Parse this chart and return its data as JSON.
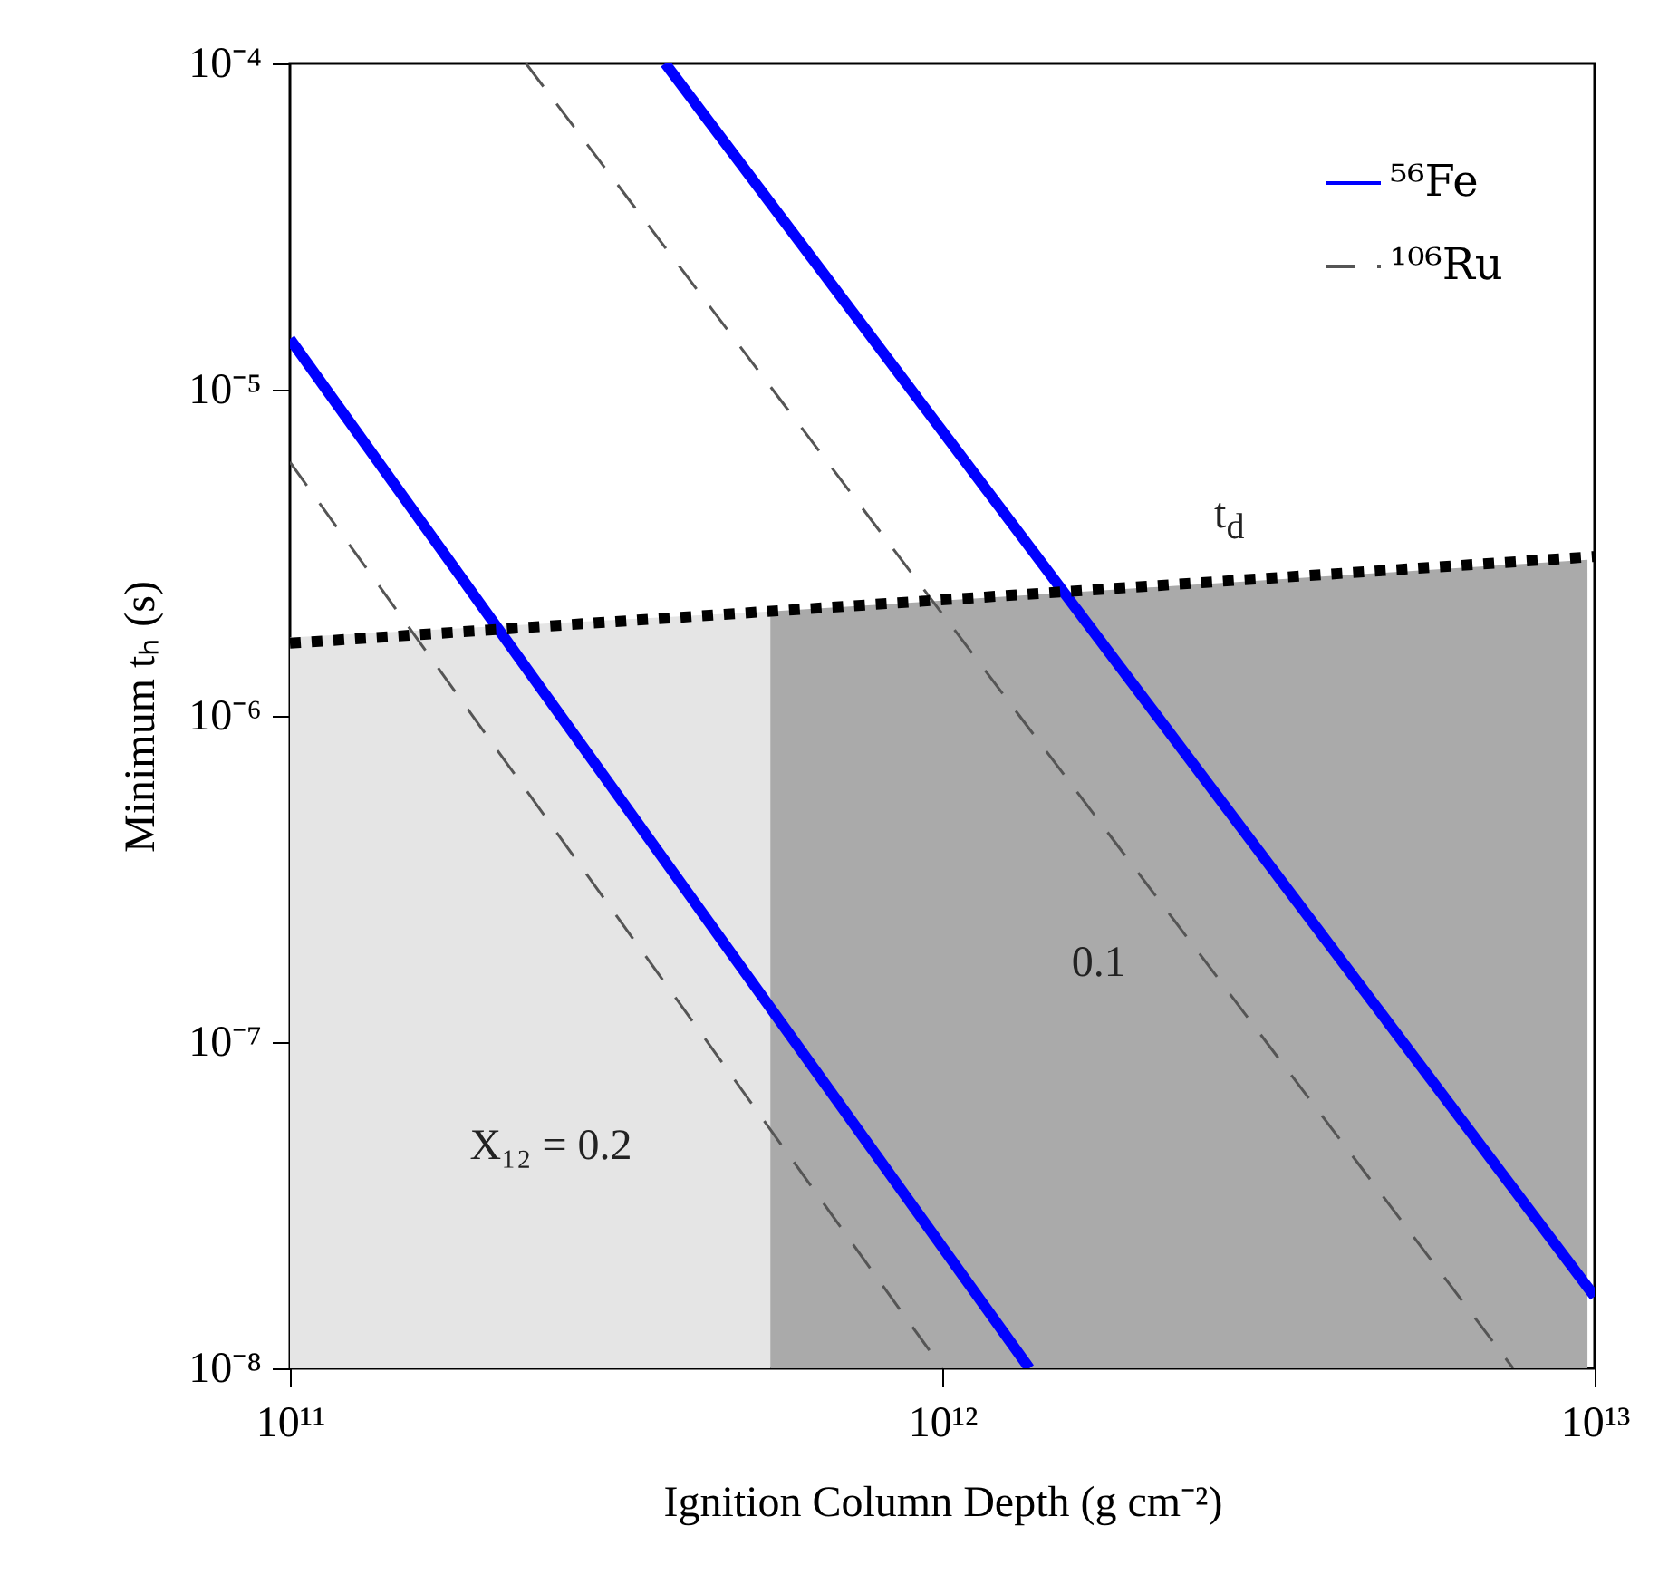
{
  "chart_data": {
    "type": "line",
    "xlabel": "Ignition Column Depth (g cm⁻²)",
    "ylabel": "Minimum tₕ (s)",
    "log": "xy",
    "xlim": [
      100000000000.0,
      10000000000000.0
    ],
    "ylim": [
      1e-08,
      0.0001
    ],
    "xticks": [
      {
        "value": 100000000000.0,
        "label": "10¹¹"
      },
      {
        "value": 1000000000000.0,
        "label": "10¹²"
      },
      {
        "value": 10000000000000.0,
        "label": "10¹³"
      }
    ],
    "yticks": [
      {
        "value": 1e-08,
        "label": "10⁻⁸"
      },
      {
        "value": 1e-07,
        "label": "10⁻⁷"
      },
      {
        "value": 1e-06,
        "label": "10⁻⁶"
      },
      {
        "value": 1e-05,
        "label": "10⁻⁵"
      },
      {
        "value": 0.0001,
        "label": "10⁻⁴"
      }
    ],
    "grid": false,
    "legend": "top right",
    "series": [
      {
        "type": "area",
        "color": "#e5e5e5",
        "x": [
          100000000000.0,
          545000000000.0
        ],
        "values": [
          1.74e-06,
          2.09e-06
        ]
      },
      {
        "type": "area",
        "color": "#aaaaaa",
        "x": [
          545000000000.0,
          9750000000000.0
        ],
        "values": [
          2.09e-06,
          3.01e-06
        ]
      },
      {
        "color": "#0000ff",
        "line_style": "solid",
        "name": "⁵⁶Fe",
        "x": [
          100000000000.0,
          1360000000000.0
        ],
        "values": [
          1.43e-05,
          1e-08
        ]
      },
      {
        "color": "#0000ff",
        "line_style": "solid",
        "x": [
          376000000000.0,
          10000000000000.0
        ],
        "values": [
          0.0001,
          1.66e-08
        ]
      },
      {
        "color": "#555555",
        "line_style": "dashed",
        "name": "¹⁰⁶Ru",
        "x": [
          100000000000.0,
          1000000000000.0
        ],
        "values": [
          6e-06,
          1e-08
        ]
      },
      {
        "color": "#555555",
        "line_style": "dashed",
        "x": [
          230000000000.0,
          7500000000000.0
        ],
        "values": [
          0.0001,
          1e-08
        ]
      },
      {
        "color": "#000000",
        "line_style": "dotted",
        "x": [
          100000000000.0,
          10000000000000.0
        ],
        "values": [
          1.67e-06,
          3.08e-06
        ]
      }
    ],
    "annotations": [
      "t$_{d}$",
      "X₁₂ = 0.2",
      "0.1"
    ]
  }
}
